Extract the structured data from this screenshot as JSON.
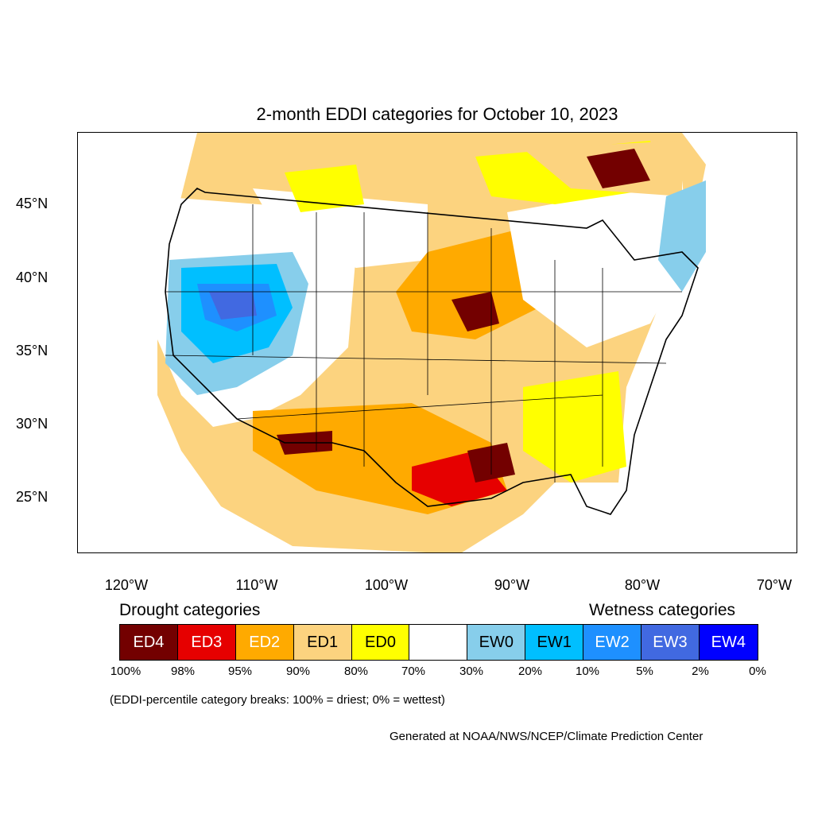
{
  "title": "2-month EDDI categories for October 10, 2023",
  "y_axis": [
    "45°N",
    "40°N",
    "35°N",
    "30°N",
    "25°N"
  ],
  "x_axis": [
    "120°W",
    "110°W",
    "100°W",
    "90°W",
    "80°W",
    "70°W"
  ],
  "legend": {
    "drought_heading": "Drought categories",
    "wetness_heading": "Wetness categories",
    "categories": [
      {
        "label": "ED4",
        "color": "#730000",
        "text_color": "#ffffff"
      },
      {
        "label": "ED3",
        "color": "#e60000",
        "text_color": "#ffffff"
      },
      {
        "label": "ED2",
        "color": "#ffaa00",
        "text_color": "#ffffff"
      },
      {
        "label": "ED1",
        "color": "#fcd37f",
        "text_color": "#000000"
      },
      {
        "label": "ED0",
        "color": "#ffff00",
        "text_color": "#000000"
      },
      {
        "label": "",
        "color": "#ffffff",
        "text_color": "#000000"
      },
      {
        "label": "EW0",
        "color": "#87ceeb",
        "text_color": "#000000"
      },
      {
        "label": "EW1",
        "color": "#00bfff",
        "text_color": "#000000"
      },
      {
        "label": "EW2",
        "color": "#1e90ff",
        "text_color": "#ffffff"
      },
      {
        "label": "EW3",
        "color": "#4169e1",
        "text_color": "#ffffff"
      },
      {
        "label": "EW4",
        "color": "#0000ff",
        "text_color": "#ffffff"
      }
    ],
    "percentiles": [
      "100%",
      "98%",
      "95%",
      "90%",
      "80%",
      "70%",
      "30%",
      "20%",
      "10%",
      "5%",
      "2%",
      "0%"
    ]
  },
  "note": "(EDDI-percentile category breaks: 100% = driest; 0% = wettest)",
  "credit": "Generated at NOAA/NWS/NCEP/Climate Prediction Center"
}
